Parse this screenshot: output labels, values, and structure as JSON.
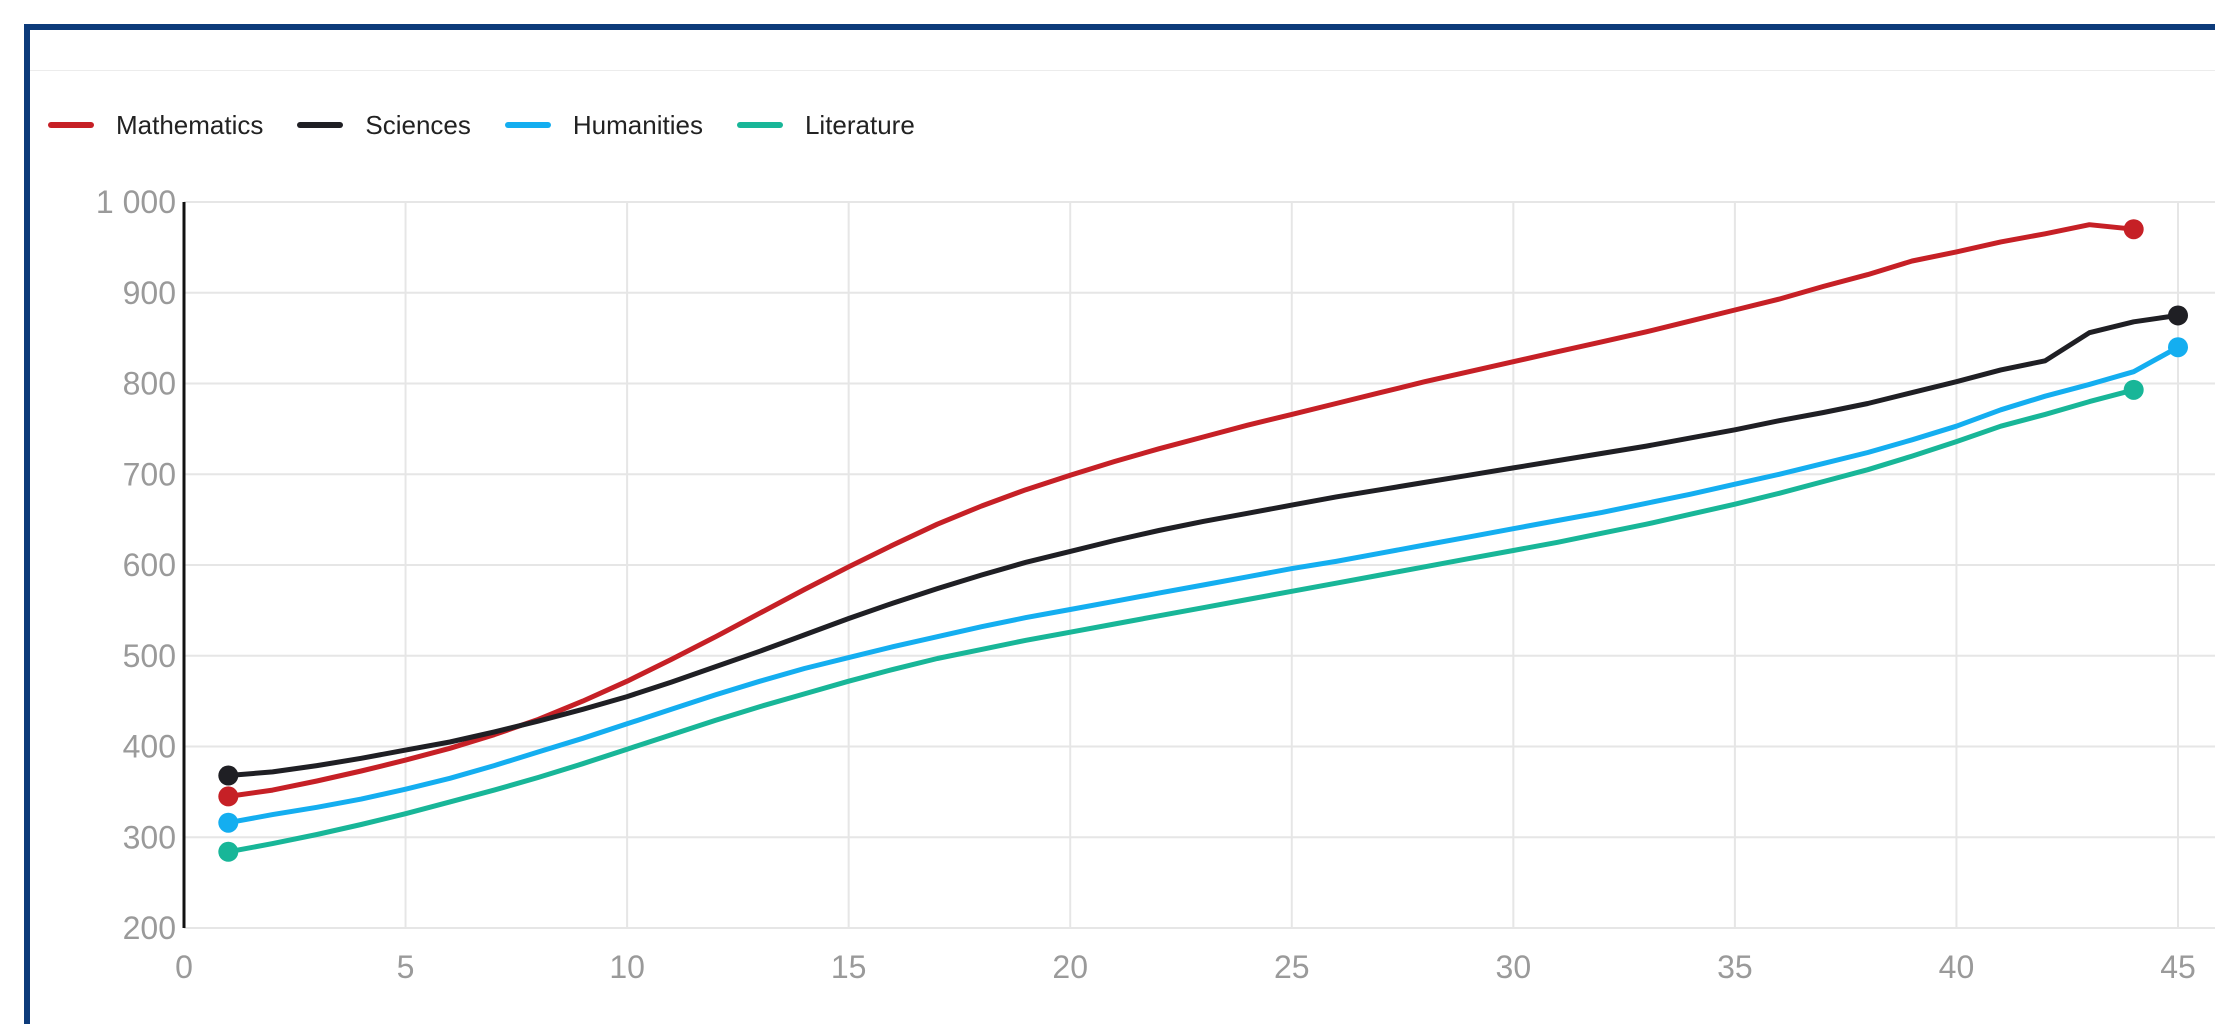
{
  "chart_data": {
    "type": "line",
    "title": "",
    "xlabel": "",
    "ylabel": "",
    "xlim": [
      0,
      45
    ],
    "ylim": [
      200,
      1000
    ],
    "x_ticks": [
      "0",
      "5",
      "10",
      "15",
      "20",
      "25",
      "30",
      "35",
      "40",
      "45"
    ],
    "y_ticks": [
      "200",
      "300",
      "400",
      "500",
      "600",
      "700",
      "800",
      "900",
      "1 000"
    ],
    "grid": true,
    "legend_position": "top-left",
    "series": [
      {
        "name": "Mathematics",
        "color": "#c62026",
        "points": [
          [
            1,
            345
          ],
          [
            2,
            352
          ],
          [
            3,
            362
          ],
          [
            4,
            373
          ],
          [
            5,
            385
          ],
          [
            6,
            398
          ],
          [
            7,
            413
          ],
          [
            8,
            430
          ],
          [
            9,
            450
          ],
          [
            10,
            472
          ],
          [
            11,
            496
          ],
          [
            12,
            521
          ],
          [
            13,
            547
          ],
          [
            14,
            573
          ],
          [
            15,
            598
          ],
          [
            16,
            622
          ],
          [
            17,
            645
          ],
          [
            18,
            665
          ],
          [
            19,
            683
          ],
          [
            20,
            699
          ],
          [
            21,
            714
          ],
          [
            22,
            728
          ],
          [
            23,
            741
          ],
          [
            24,
            754
          ],
          [
            25,
            766
          ],
          [
            26,
            778
          ],
          [
            27,
            790
          ],
          [
            28,
            802
          ],
          [
            29,
            813
          ],
          [
            30,
            824
          ],
          [
            31,
            835
          ],
          [
            32,
            846
          ],
          [
            33,
            857
          ],
          [
            34,
            869
          ],
          [
            35,
            881
          ],
          [
            36,
            893
          ],
          [
            37,
            907
          ],
          [
            38,
            920
          ],
          [
            39,
            935
          ],
          [
            40,
            945
          ],
          [
            41,
            956
          ],
          [
            42,
            965
          ],
          [
            43,
            975
          ],
          [
            44,
            970
          ]
        ]
      },
      {
        "name": "Sciences",
        "color": "#1f1f24",
        "points": [
          [
            1,
            368
          ],
          [
            2,
            372
          ],
          [
            3,
            379
          ],
          [
            4,
            387
          ],
          [
            5,
            396
          ],
          [
            6,
            405
          ],
          [
            7,
            416
          ],
          [
            8,
            428
          ],
          [
            9,
            441
          ],
          [
            10,
            455
          ],
          [
            11,
            471
          ],
          [
            12,
            488
          ],
          [
            13,
            505
          ],
          [
            14,
            523
          ],
          [
            15,
            541
          ],
          [
            16,
            558
          ],
          [
            17,
            574
          ],
          [
            18,
            589
          ],
          [
            19,
            603
          ],
          [
            20,
            615
          ],
          [
            21,
            627
          ],
          [
            22,
            638
          ],
          [
            23,
            648
          ],
          [
            24,
            657
          ],
          [
            25,
            666
          ],
          [
            26,
            675
          ],
          [
            27,
            683
          ],
          [
            28,
            691
          ],
          [
            29,
            699
          ],
          [
            30,
            707
          ],
          [
            31,
            715
          ],
          [
            32,
            723
          ],
          [
            33,
            731
          ],
          [
            34,
            740
          ],
          [
            35,
            749
          ],
          [
            36,
            759
          ],
          [
            37,
            768
          ],
          [
            38,
            778
          ],
          [
            39,
            790
          ],
          [
            40,
            802
          ],
          [
            41,
            815
          ],
          [
            42,
            825
          ],
          [
            43,
            856
          ],
          [
            44,
            868
          ],
          [
            45,
            875
          ]
        ]
      },
      {
        "name": "Humanities",
        "color": "#14aef0",
        "points": [
          [
            1,
            316
          ],
          [
            2,
            325
          ],
          [
            3,
            333
          ],
          [
            4,
            342
          ],
          [
            5,
            353
          ],
          [
            6,
            365
          ],
          [
            7,
            379
          ],
          [
            8,
            394
          ],
          [
            9,
            409
          ],
          [
            10,
            425
          ],
          [
            11,
            441
          ],
          [
            12,
            457
          ],
          [
            13,
            472
          ],
          [
            14,
            486
          ],
          [
            15,
            498
          ],
          [
            16,
            510
          ],
          [
            17,
            521
          ],
          [
            18,
            532
          ],
          [
            19,
            542
          ],
          [
            20,
            551
          ],
          [
            21,
            560
          ],
          [
            22,
            569
          ],
          [
            23,
            578
          ],
          [
            24,
            587
          ],
          [
            25,
            596
          ],
          [
            26,
            604
          ],
          [
            27,
            613
          ],
          [
            28,
            622
          ],
          [
            29,
            631
          ],
          [
            30,
            640
          ],
          [
            31,
            649
          ],
          [
            32,
            658
          ],
          [
            33,
            668
          ],
          [
            34,
            678
          ],
          [
            35,
            689
          ],
          [
            36,
            700
          ],
          [
            37,
            712
          ],
          [
            38,
            724
          ],
          [
            39,
            738
          ],
          [
            40,
            753
          ],
          [
            41,
            771
          ],
          [
            42,
            786
          ],
          [
            43,
            799
          ],
          [
            44,
            813
          ],
          [
            45,
            840
          ]
        ]
      },
      {
        "name": "Literature",
        "color": "#18b698",
        "points": [
          [
            1,
            284
          ],
          [
            2,
            293
          ],
          [
            3,
            303
          ],
          [
            4,
            314
          ],
          [
            5,
            326
          ],
          [
            6,
            339
          ],
          [
            7,
            352
          ],
          [
            8,
            366
          ],
          [
            9,
            381
          ],
          [
            10,
            397
          ],
          [
            11,
            413
          ],
          [
            12,
            429
          ],
          [
            13,
            444
          ],
          [
            14,
            458
          ],
          [
            15,
            472
          ],
          [
            16,
            485
          ],
          [
            17,
            497
          ],
          [
            18,
            507
          ],
          [
            19,
            517
          ],
          [
            20,
            526
          ],
          [
            21,
            535
          ],
          [
            22,
            544
          ],
          [
            23,
            553
          ],
          [
            24,
            562
          ],
          [
            25,
            571
          ],
          [
            26,
            580
          ],
          [
            27,
            589
          ],
          [
            28,
            598
          ],
          [
            29,
            607
          ],
          [
            30,
            616
          ],
          [
            31,
            625
          ],
          [
            32,
            635
          ],
          [
            33,
            645
          ],
          [
            34,
            656
          ],
          [
            35,
            667
          ],
          [
            36,
            679
          ],
          [
            37,
            692
          ],
          [
            38,
            705
          ],
          [
            39,
            720
          ],
          [
            40,
            736
          ],
          [
            41,
            753
          ],
          [
            42,
            766
          ],
          [
            43,
            780
          ],
          [
            44,
            793
          ]
        ]
      }
    ]
  }
}
